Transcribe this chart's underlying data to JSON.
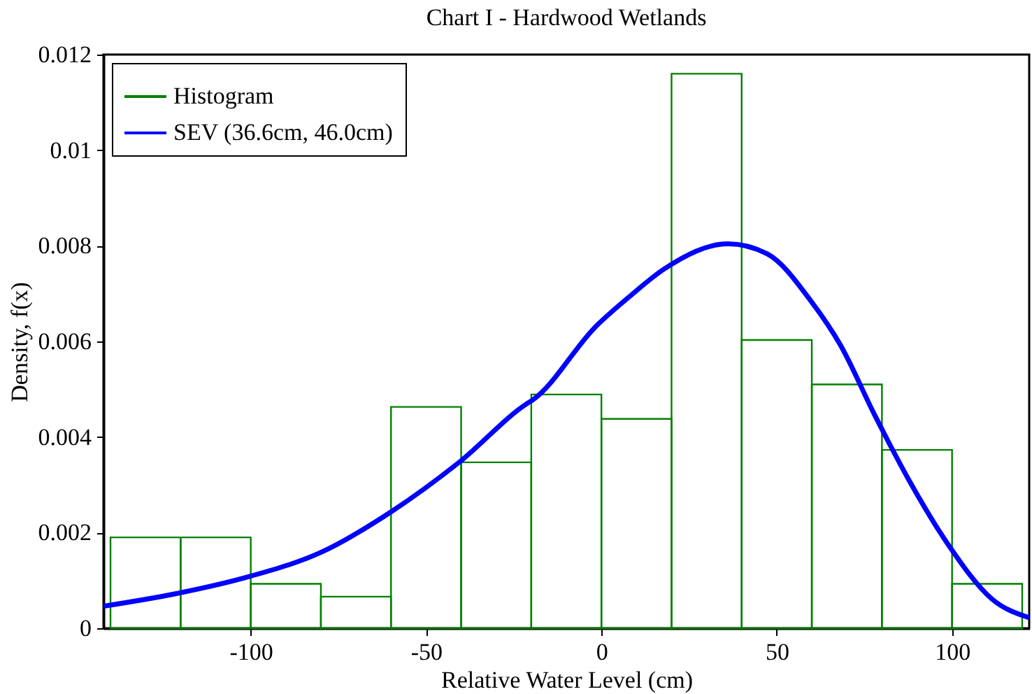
{
  "chart_data": {
    "type": "histogram",
    "title": "Chart I - Hardwood Wetlands",
    "xlabel": "Relative Water Level (cm)",
    "ylabel": "Density, f(x)",
    "bins": [
      -140,
      -120,
      -100,
      -80,
      -60,
      -40,
      -20,
      0,
      20,
      40,
      60,
      80,
      100,
      120
    ],
    "series": [
      {
        "name": "Histogram",
        "color": "#008000",
        "values": [
          0.0019,
          0.0019,
          0.00093,
          0.00066,
          0.00463,
          0.00347,
          0.00489,
          0.00438,
          0.0116,
          0.00603,
          0.0051,
          0.00373,
          0.00093
        ]
      },
      {
        "name": "SEV (36.6cm, 46.0cm)",
        "type": "line",
        "color": "#0000ff",
        "x": [
          -142,
          -121.5,
          -100.5,
          -79.6,
          -60.1,
          -40.6,
          -21,
          -19.7,
          -1.5,
          8.2,
          18,
          36.1,
          47.3,
          59.8,
          68.2,
          78,
          87.7,
          98.9,
          111.4,
          122
        ],
        "values": [
          0.00046,
          0.00072,
          0.00108,
          0.0016,
          0.00243,
          0.00347,
          0.00471,
          0.00477,
          0.00632,
          0.00695,
          0.00752,
          0.00804,
          0.00783,
          0.00684,
          0.00592,
          0.00445,
          0.0031,
          0.00175,
          0.00061,
          0.00022
        ]
      }
    ],
    "xlim": [
      -142,
      122
    ],
    "ylim": [
      0,
      0.012
    ],
    "xticks": [
      -100,
      -50,
      0,
      50,
      100
    ],
    "yticks": [
      0,
      0.002,
      0.004,
      0.006,
      0.008,
      0.01,
      0.012
    ],
    "legend": "top left",
    "line_style": "solid"
  }
}
